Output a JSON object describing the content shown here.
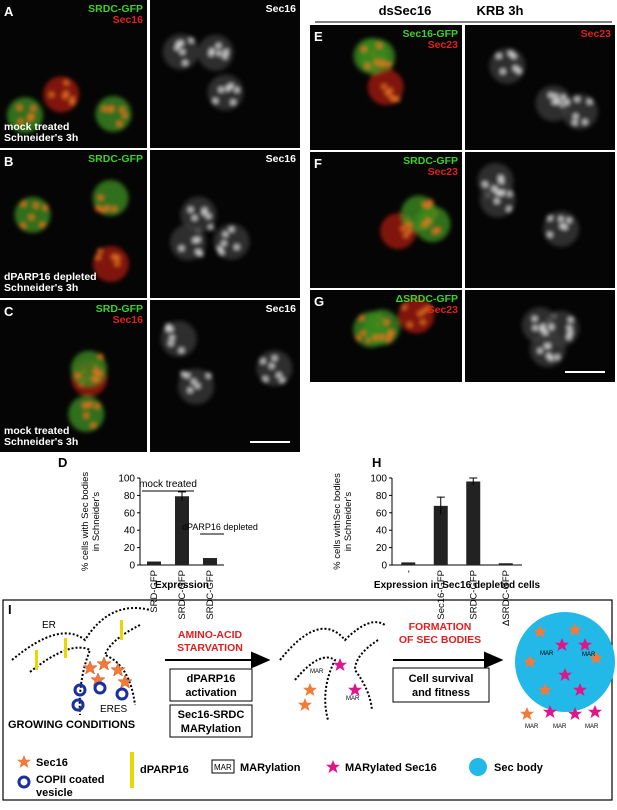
{
  "figure": {
    "panels": [
      {
        "letter": "A",
        "left_labels": [
          "SRDC-GFP",
          "Sec16"
        ],
        "caption": [
          "mock treated",
          "Schneider's 3h"
        ],
        "right_label": "Sec16"
      },
      {
        "letter": "B",
        "left_labels": [
          "SRDC-GFP"
        ],
        "caption": [
          "dPARP16 depleted",
          "Schneider's 3h"
        ],
        "right_label": "Sec16"
      },
      {
        "letter": "C",
        "left_labels": [
          "SRD-GFP",
          "Sec16"
        ],
        "caption": [
          "mock treated",
          "Schneider's 3h"
        ],
        "right_label": "Sec16"
      },
      {
        "letter": "E",
        "left_labels": [
          "Sec16-GFP",
          "Sec23"
        ],
        "right_label": "Sec23"
      },
      {
        "letter": "F",
        "left_labels": [
          "SRDC-GFP",
          "Sec23"
        ]
      },
      {
        "letter": "G",
        "left_labels": [
          "ΔSRDC-GFP",
          "Sec23"
        ]
      }
    ],
    "right_header": [
      "dsSec16",
      "KRB 3h"
    ]
  },
  "chart_data": [
    {
      "type": "bar",
      "letter": "D",
      "categories": [
        "SRD-GFP",
        "SRDC-GFP",
        "SRDC-GFP"
      ],
      "values": [
        4,
        79,
        8
      ],
      "errors": [
        0,
        5,
        0
      ],
      "ylim": [
        0,
        100
      ],
      "yticks": [
        0,
        20,
        40,
        60,
        80,
        100
      ],
      "y_label": [
        "% cells with Sec bodies",
        "in Schneider's"
      ],
      "x_label": "Expression",
      "annotations": [
        "mock treated",
        "dPARP16 depleted"
      ]
    },
    {
      "type": "bar",
      "letter": "H",
      "categories": [
        "-",
        "Sec16-GFP",
        "SRDC-GFP",
        "ΔSRDC-GFP"
      ],
      "values": [
        3,
        68,
        96,
        2
      ],
      "errors": [
        0,
        10,
        4,
        0
      ],
      "ylim": [
        0,
        100
      ],
      "yticks": [
        0,
        20,
        40,
        60,
        80,
        100
      ],
      "y_label": [
        "% cells withSec bodies",
        "in Schneider's"
      ],
      "x_label": "Expression in Sec16 depleted cells"
    }
  ],
  "diagram": {
    "letter": "I",
    "er": "ER",
    "eres": "ERES",
    "growing": "GROWING CONDITIONS",
    "starvation": [
      "AMINO-ACID",
      "STARVATION"
    ],
    "activation": [
      "dPARP16",
      "activation"
    ],
    "marylation": [
      "Sec16-SRDC",
      "MARylation"
    ],
    "formation": [
      "FORMATION",
      "OF SEC BODIES"
    ],
    "survival": [
      "Cell survival",
      "and fitness"
    ],
    "mar": "MAR",
    "legend": {
      "sec16": "Sec16",
      "copii": [
        "COPII coated",
        "vesicle"
      ],
      "dparp16": "dPARP16",
      "marylation": "MARylation",
      "marylated": "MARylated Sec16",
      "secbody": "Sec body"
    }
  }
}
